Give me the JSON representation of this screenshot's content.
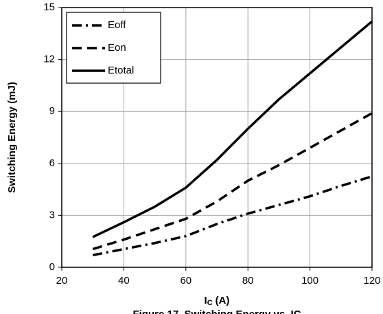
{
  "chart_data": {
    "type": "line",
    "y_label": "Switching Energy (mJ)",
    "x_label": "I",
    "x_label_sub": "C",
    "x_label_unit": "(A)",
    "caption": "Figure 17. Switching Energy vs. IC",
    "x": [
      30,
      40,
      50,
      60,
      70,
      80,
      90,
      100,
      110,
      120
    ],
    "series": [
      {
        "name": "Eoff",
        "color": "#000000",
        "dash": "dashdot",
        "values": [
          0.7,
          1.05,
          1.4,
          1.8,
          2.5,
          3.1,
          3.6,
          4.1,
          4.7,
          5.25
        ]
      },
      {
        "name": "Eon",
        "color": "#000000",
        "dash": "dash",
        "values": [
          1.05,
          1.6,
          2.2,
          2.8,
          3.8,
          5.0,
          5.9,
          6.9,
          7.9,
          8.9
        ]
      },
      {
        "name": "Etotal",
        "color": "#000000",
        "dash": "solid",
        "values": [
          1.75,
          2.6,
          3.5,
          4.6,
          6.2,
          8.0,
          9.7,
          11.2,
          12.7,
          14.2
        ]
      }
    ],
    "xlim": [
      20,
      120
    ],
    "xticks": [
      20,
      40,
      60,
      80,
      100,
      120
    ],
    "ylim": [
      0,
      15
    ],
    "yticks": [
      0,
      3,
      6,
      9,
      12,
      15
    ],
    "grid": true,
    "legend": "top-left"
  }
}
